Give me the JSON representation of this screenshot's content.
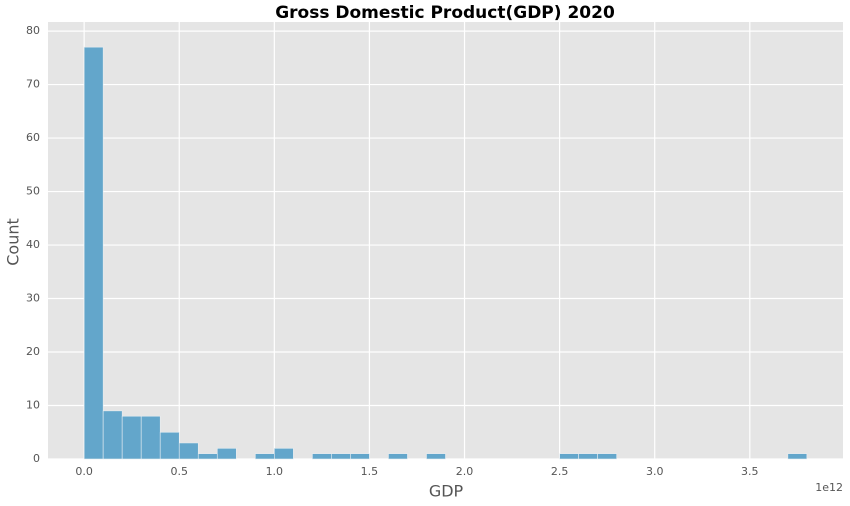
{
  "chart_data": {
    "type": "histogram",
    "title": "Gross Domestic Product(GDP) 2020",
    "x_label": "GDP",
    "y_label": "Count",
    "x_offset_label": "1e12",
    "bins": [
      0,
      100000000000,
      200000000000,
      300000000000,
      400000000000,
      500000000000,
      600000000000,
      700000000000,
      800000000000,
      900000000000,
      1000000000000,
      1100000000000,
      1200000000000,
      1300000000000,
      1400000000000,
      1500000000000,
      1600000000000,
      1700000000000,
      1800000000000,
      1900000000000,
      2000000000000,
      2100000000000,
      2200000000000,
      2300000000000,
      2400000000000,
      2500000000000,
      2600000000000,
      2700000000000,
      2800000000000,
      2900000000000,
      3000000000000,
      3100000000000,
      3200000000000,
      3300000000000,
      3400000000000,
      3500000000000,
      3600000000000,
      3700000000000,
      3800000000000
    ],
    "values": [
      77,
      9,
      8,
      8,
      5,
      3,
      1,
      2,
      0,
      1,
      2,
      0,
      1,
      1,
      1,
      0,
      1,
      0,
      1,
      0,
      0,
      0,
      0,
      0,
      0,
      1,
      1,
      1,
      0,
      0,
      0,
      0,
      0,
      0,
      0,
      0,
      0,
      1
    ],
    "color": "#63a6cb",
    "xlim": [
      -190000000000,
      3990000000000
    ],
    "xticks": [
      {
        "value": 0,
        "label": "0.0"
      },
      {
        "value": 500000000000,
        "label": "0.5"
      },
      {
        "value": 1000000000000,
        "label": "1.0"
      },
      {
        "value": 1500000000000,
        "label": "1.5"
      },
      {
        "value": 2000000000000,
        "label": "2.0"
      },
      {
        "value": 2500000000000,
        "label": "2.5"
      },
      {
        "value": 3000000000000,
        "label": "3.0"
      },
      {
        "value": 3500000000000,
        "label": "3.5"
      }
    ],
    "ylim": [
      0,
      81.7
    ],
    "yticks": [
      0,
      10,
      20,
      30,
      40,
      50,
      60,
      70,
      80
    ],
    "grid": true
  }
}
